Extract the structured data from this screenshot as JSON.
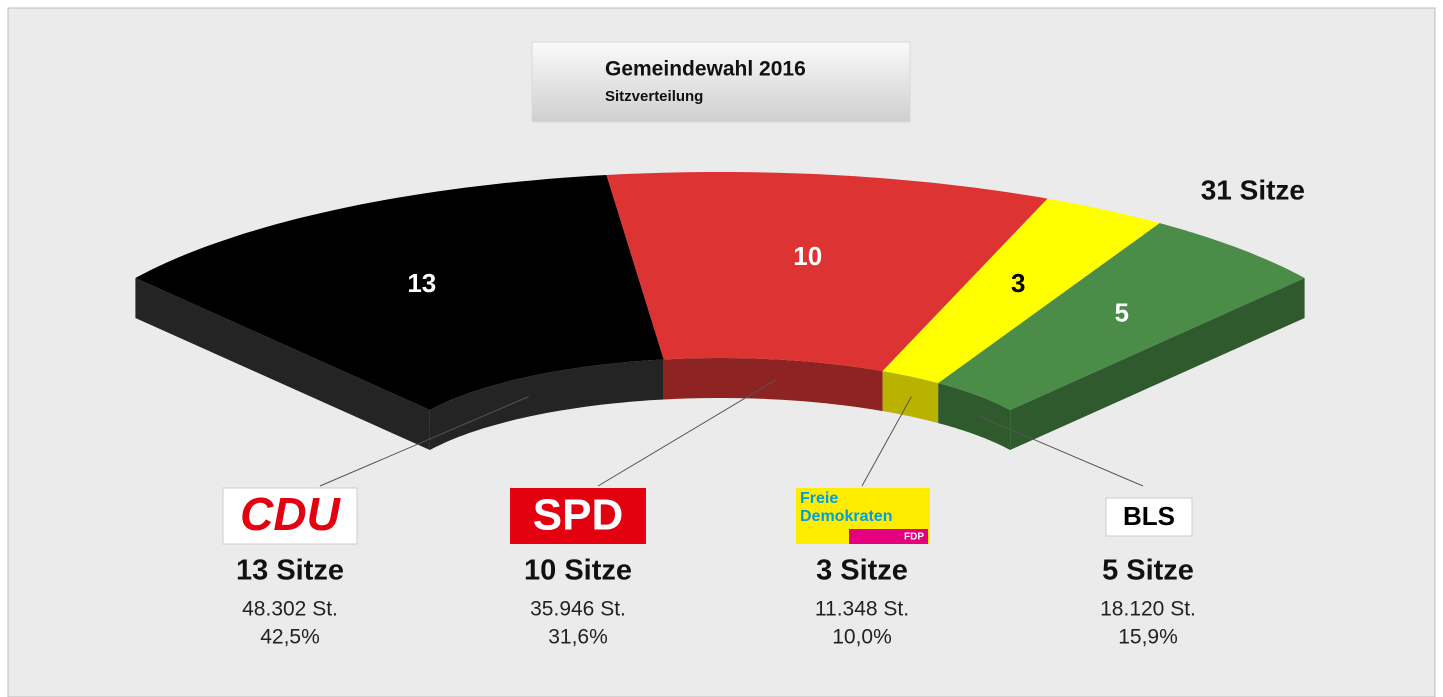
{
  "chart_data": {
    "type": "seat-arc",
    "title": "Gemeindewahl 2016",
    "subtitle": "Sitzverteilung",
    "total_label": "31 Sitze",
    "categories": [
      "CDU",
      "SPD",
      "FDP",
      "BLS"
    ],
    "logo_text": [
      "Freie",
      "Demokraten"
    ],
    "values": [
      13,
      10,
      3,
      5
    ],
    "value_labels": [
      "13 Sitze",
      "10 Sitze",
      "3 Sitze",
      "5 Sitze"
    ],
    "colors": [
      "#000000",
      "#dd3333",
      "#ffff00",
      "#4b8c49"
    ],
    "side_colors": [
      "#242424",
      "#8e2323",
      "#b9b300",
      "#2f5a2d"
    ],
    "label_colors": [
      "#ffffff",
      "#ffffff",
      "#000000",
      "#ffffff"
    ],
    "votes": [
      48302,
      35946,
      11348,
      18120
    ],
    "vote_labels": [
      "48.302 St.",
      "35.946 St.",
      "11.348 St.",
      "18.120 St."
    ],
    "shares": [
      42.5,
      31.6,
      10.0,
      15.9
    ],
    "share_labels": [
      "42,5%",
      "31,6%",
      "10,0%",
      "15,9%"
    ]
  }
}
